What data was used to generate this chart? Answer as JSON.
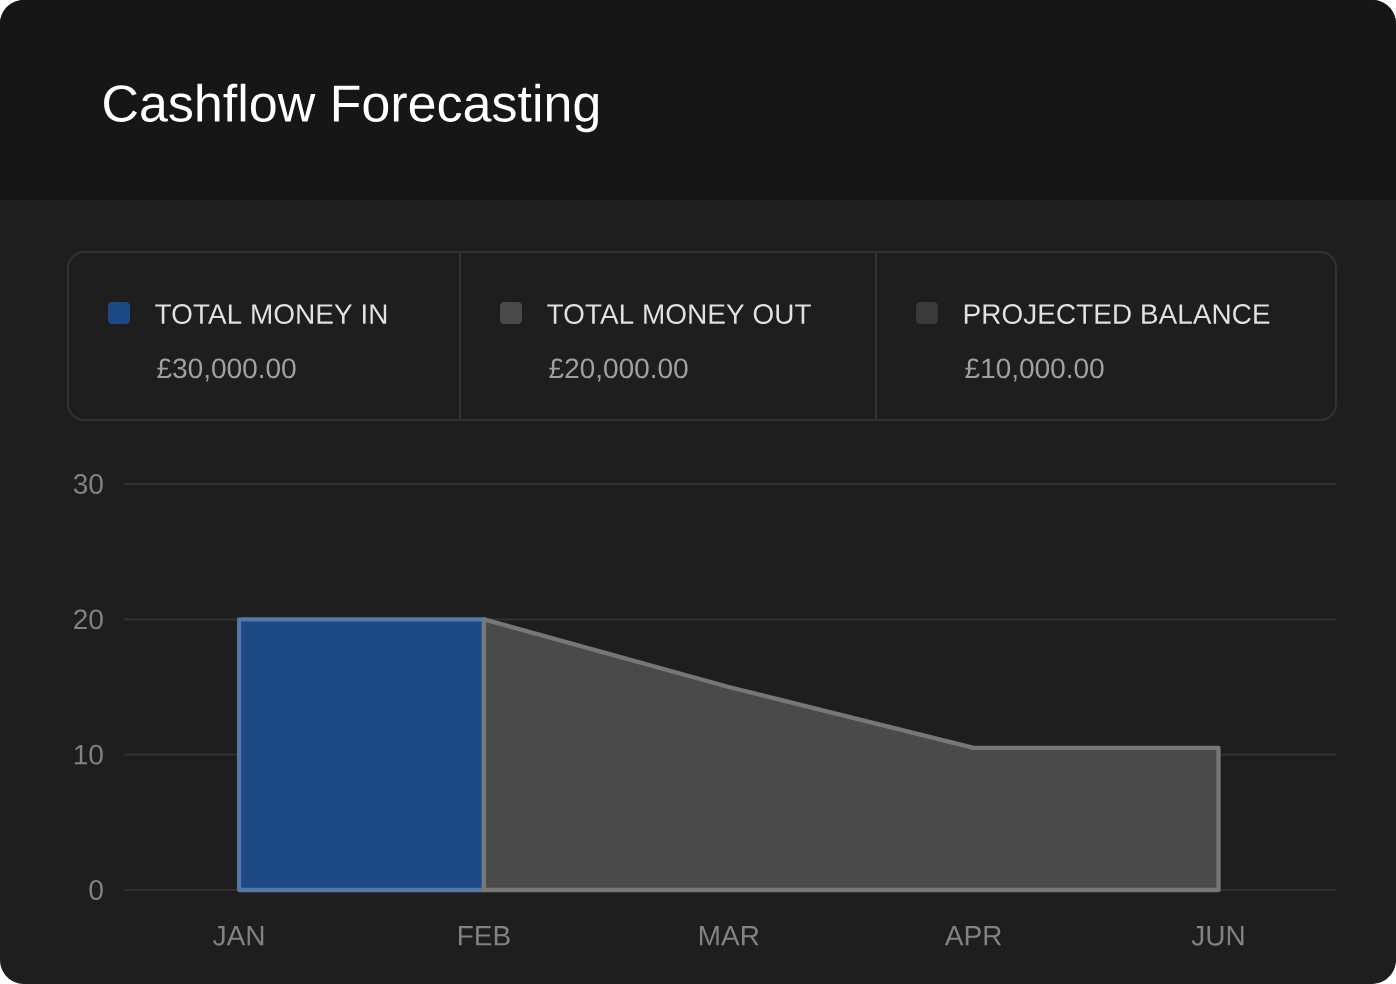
{
  "chart_data": {
    "type": "area",
    "title": "Cashflow Forecasting",
    "categories": [
      "JAN",
      "FEB",
      "MAR",
      "APR",
      "JUN"
    ],
    "series": [
      {
        "name": "TOTAL MONEY IN",
        "color": "#1d4a85",
        "values": [
          20,
          20,
          null,
          null,
          null
        ]
      },
      {
        "name": "TOTAL MONEY OUT",
        "color": "#4a4a4a",
        "values": [
          null,
          20,
          15,
          10.5,
          10.5
        ]
      },
      {
        "name": "PROJECTED BALANCE",
        "color": "#3a3a3a",
        "values": [
          null,
          null,
          null,
          null,
          null
        ]
      }
    ],
    "annotations": [
      "£30,000.00",
      "£20,000.00",
      "£10,000.00"
    ],
    "ylim": [
      0,
      30
    ],
    "yticks": [
      0,
      10,
      20,
      30
    ],
    "grid": "y",
    "legend": "top"
  }
}
